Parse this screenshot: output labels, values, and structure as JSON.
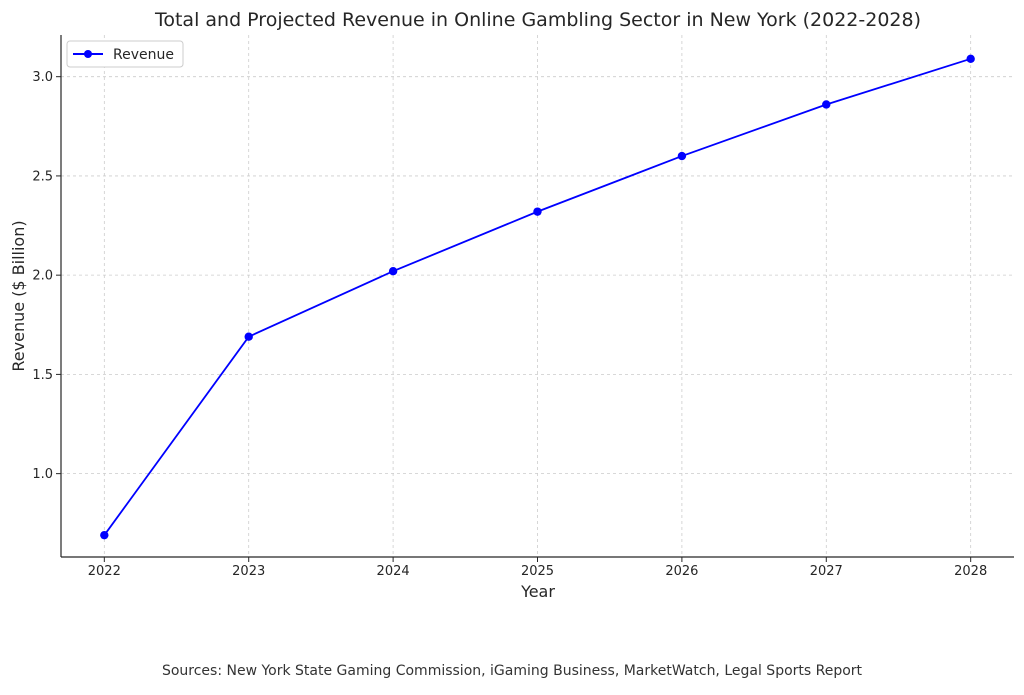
{
  "chart_data": {
    "type": "line",
    "title": "Total and Projected Revenue in Online Gambling Sector in New York (2022-2028)",
    "xlabel": "Year",
    "ylabel": "Revenue ($ Billion)",
    "x": [
      "2022",
      "2023",
      "2024",
      "2025",
      "2026",
      "2027",
      "2028"
    ],
    "xlim": [
      2021.7,
      2028.3
    ],
    "ylim": [
      0.58,
      3.21
    ],
    "yticks": [
      "1.0",
      "1.5",
      "2.0",
      "2.5",
      "3.0"
    ],
    "grid": true,
    "legend_position": "top-left",
    "series": [
      {
        "name": "Revenue",
        "color": "#0000ff",
        "marker": "circle",
        "values": [
          0.69,
          1.69,
          2.02,
          2.32,
          2.6,
          2.86,
          3.09
        ]
      }
    ]
  },
  "footer": {
    "source": "Sources: New York State Gaming Commission, iGaming Business, MarketWatch, Legal Sports Report"
  }
}
